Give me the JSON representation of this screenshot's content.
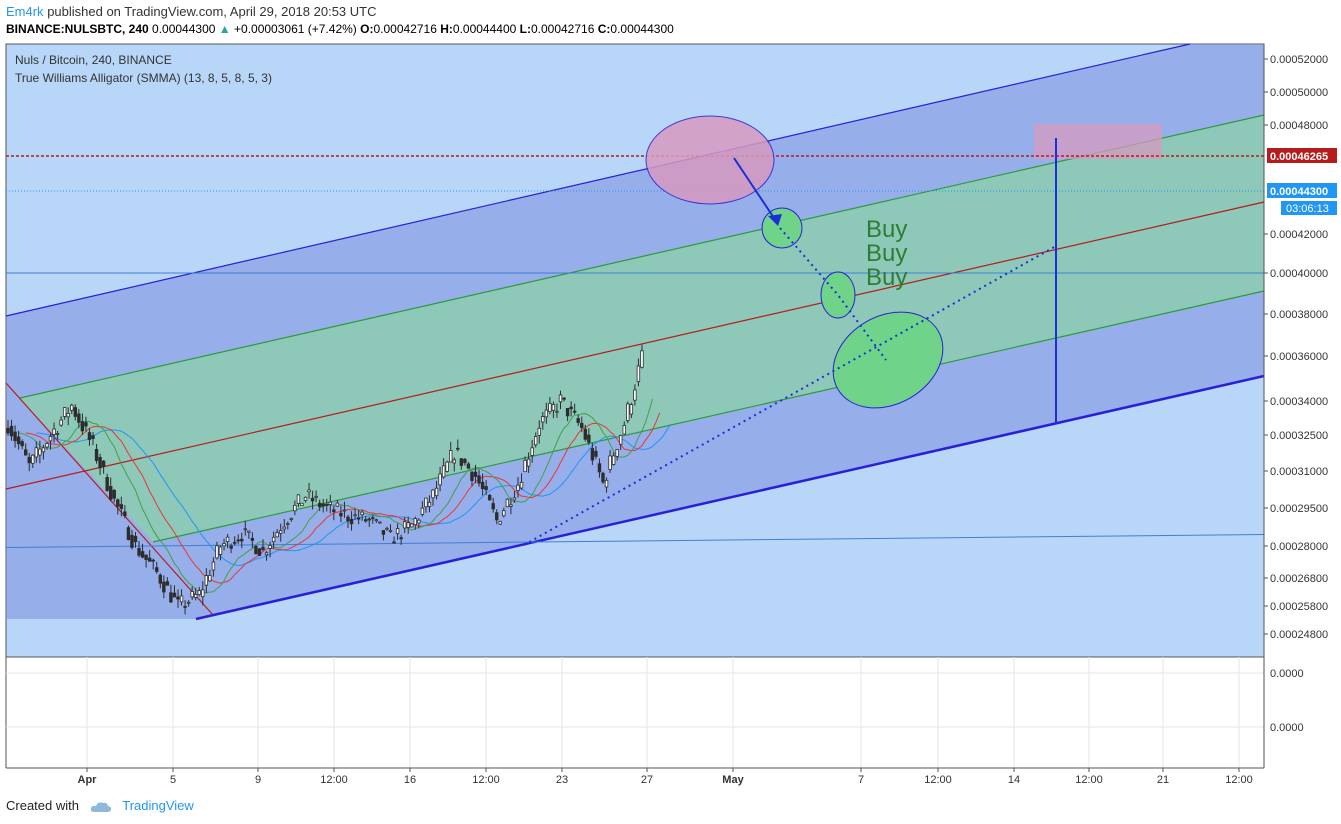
{
  "header": {
    "author": "Em4rk",
    "published": "published on TradingView.com, April 29, 2018 20:53 UTC",
    "symbol": "BINANCE:NULSBTC, 240",
    "last": "0.00044300",
    "change_arrow": "▲",
    "change": "+0.00003061 (+7.42%)",
    "o_label": "O:",
    "o_value": "0.00042716",
    "h_label": "H:",
    "h_value": "0.00044400",
    "l_label": "L:",
    "l_value": "0.00042716",
    "c_label": "C:",
    "c_value": "0.00044300"
  },
  "legend": {
    "title": "Nuls / Bitcoin, 240, BINANCE",
    "indicator": "True Williams Alligator (SMMA) (13, 8, 5, 8, 5, 3)"
  },
  "footer": {
    "created_with": "Created with",
    "brand": "TradingView"
  },
  "chart_data": {
    "type": "candlestick",
    "timeframe": "240",
    "x_ticks": [
      "Apr",
      "5",
      "9",
      "12:00",
      "16",
      "12:00",
      "23",
      "27",
      "May",
      "7",
      "12:00",
      "14",
      "12:00",
      "21",
      "12:00"
    ],
    "y_ticks": [
      "0.00052000",
      "0.00050000",
      "0.00048000",
      "0.00046265",
      "0.00044300",
      "0.00042000",
      "0.00040000",
      "0.00038000",
      "0.00036000",
      "0.00034000",
      "0.00032500",
      "0.00031000",
      "0.00029500",
      "0.00028000",
      "0.00026800",
      "0.00025800",
      "0.00024800"
    ],
    "y_range": [
      0.000238,
      0.000531
    ],
    "price_labels": [
      {
        "value": "0.00046265",
        "color": "#b71c1c"
      },
      {
        "value": "0.00044300",
        "color": "#2196f3"
      },
      {
        "value": "03:06:13",
        "color": "#2196f3"
      }
    ],
    "subpane_ticks": [
      "0.0000",
      "0.0000"
    ],
    "price_path": [
      [
        "Mar 29",
        0.00033
      ],
      [
        "Mar 30",
        0.000312
      ],
      [
        "Apr 1",
        0.000338
      ],
      [
        "Apr 2",
        0.00032
      ],
      [
        "Apr 3",
        0.000298
      ],
      [
        "Apr 4",
        0.00028
      ],
      [
        "Apr 5",
        0.00027
      ],
      [
        "Apr 6",
        0.000258
      ],
      [
        "Apr 7",
        0.000262
      ],
      [
        "Apr 8",
        0.00028
      ],
      [
        "Apr 9",
        0.000285
      ],
      [
        "Apr 10",
        0.000278
      ],
      [
        "Apr 11",
        0.00029
      ],
      [
        "Apr 12",
        0.0003
      ],
      [
        "Apr 13",
        0.000295
      ],
      [
        "Apr 14",
        0.000292
      ],
      [
        "Apr 15",
        0.00029
      ],
      [
        "Apr 16",
        0.000283
      ],
      [
        "Apr 17",
        0.000288
      ],
      [
        "Apr 18",
        0.0003
      ],
      [
        "Apr 19",
        0.000318
      ],
      [
        "Apr 20",
        0.000308
      ],
      [
        "Apr 21",
        0.00029
      ],
      [
        "Apr 22",
        0.000305
      ],
      [
        "Apr 23",
        0.00033
      ],
      [
        "Apr 24",
        0.00034
      ],
      [
        "Apr 25",
        0.000328
      ],
      [
        "Apr 26",
        0.000305
      ],
      [
        "Apr 27",
        0.00033
      ],
      [
        "Apr 28",
        0.000365
      ],
      [
        "Apr 29",
        0.000443
      ]
    ],
    "horizontal_levels": [
      0.00046265,
      0.000443,
      0.0004,
      0.000281
    ],
    "annotations": [
      "Buy",
      "Buy",
      "Buy"
    ],
    "alligator": {
      "jaw_color": "#2196f3",
      "teeth_color": "#e53935",
      "lips_color": "#43a047"
    },
    "colors": {
      "up": "#26a69a",
      "down": "#26a69a",
      "candle": "#2d2d2d",
      "outer_channel": "#2a1fd6",
      "inner_channel": "#2e9a3a",
      "mid_line": "#b71c1c"
    }
  }
}
